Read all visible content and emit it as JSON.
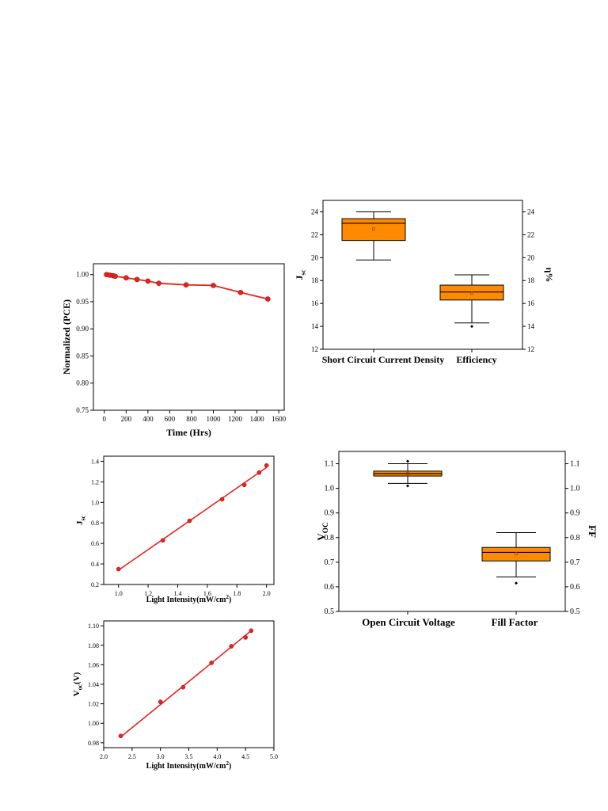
{
  "chart_data": [
    {
      "type": "line",
      "xlabel": "Time (Hrs)",
      "ylabel": "Normalized (PCE)",
      "xlim": [
        -100,
        1650
      ],
      "ylim": [
        0.75,
        1.02
      ],
      "xticks": [
        0,
        200,
        400,
        600,
        800,
        1000,
        1200,
        1400,
        1600
      ],
      "xtick_labels": [
        "0",
        "200",
        "400",
        "600",
        "800",
        "1000",
        "1200",
        "1400",
        "1600"
      ],
      "yticks": [
        0.75,
        0.8,
        0.85,
        0.9,
        0.95,
        1.0
      ],
      "ytick_labels": [
        "0.75",
        "0.80",
        "0.85",
        "0.90",
        "0.95",
        "1.00"
      ],
      "x": [
        20,
        50,
        80,
        100,
        200,
        300,
        400,
        500,
        750,
        1000,
        1250,
        1500
      ],
      "values": [
        1.0,
        0.999,
        0.998,
        0.997,
        0.994,
        0.991,
        0.988,
        0.984,
        0.981,
        0.98,
        0.967,
        0.955
      ],
      "color": "#e8231f"
    },
    {
      "type": "box",
      "left_ylabel": "J",
      "left_ylabel_sub": "sc",
      "right_ylabel": "η%",
      "ylim": [
        12,
        25
      ],
      "yticks": [
        12,
        14,
        16,
        18,
        20,
        22,
        24
      ],
      "ytick_labels": [
        "12",
        "14",
        "16",
        "18",
        "20",
        "22",
        "24"
      ],
      "categories": [
        "Short Circuit Current Density",
        "Efficiency"
      ],
      "boxes": [
        {
          "whisker_low": 19.8,
          "q1": 21.5,
          "median": 23.0,
          "mean": 22.5,
          "q3": 23.4,
          "whisker_high": 24.0,
          "outliers": []
        },
        {
          "whisker_low": 14.3,
          "q1": 16.3,
          "median": 17.0,
          "mean": 16.9,
          "q3": 17.6,
          "whisker_high": 18.5,
          "outliers": [
            14.0
          ]
        }
      ],
      "box_color": "#ff8a00"
    },
    {
      "type": "scatter",
      "xlabel": "Light Intensity(mW/cm",
      "xlabel_sup": "2",
      "xlabel_end": ")",
      "ylabel": "J",
      "ylabel_sub": "sc",
      "xlim": [
        0.9,
        2.05
      ],
      "ylim": [
        0.2,
        1.45
      ],
      "xticks": [
        1.0,
        1.2,
        1.4,
        1.6,
        1.8,
        2.0
      ],
      "xtick_labels": [
        "1.0",
        "1.2",
        "1.4",
        "1.6",
        "1.8",
        "2.0"
      ],
      "yticks": [
        0.2,
        0.4,
        0.6,
        0.8,
        1.0,
        1.2,
        1.4
      ],
      "ytick_labels": [
        "0.2",
        "0.4",
        "0.6",
        "0.8",
        "1.0",
        "1.2",
        "1.4"
      ],
      "x": [
        1.0,
        1.3,
        1.48,
        1.7,
        1.85,
        1.95,
        2.0
      ],
      "values": [
        0.35,
        0.63,
        0.82,
        1.03,
        1.17,
        1.29,
        1.36
      ],
      "fit": {
        "x": [
          1.0,
          2.0
        ],
        "y": [
          0.34,
          1.34
        ]
      },
      "color": "#e8231f"
    },
    {
      "type": "box",
      "left_ylabel": "V",
      "left_ylabel_sub": "OC",
      "right_ylabel": "FF",
      "ylim": [
        0.5,
        1.15
      ],
      "yticks": [
        0.5,
        0.6,
        0.7,
        0.8,
        0.9,
        1.0,
        1.1
      ],
      "ytick_labels": [
        "0.5",
        "0.6",
        "0.7",
        "0.8",
        "0.9",
        "1.0",
        "1.1"
      ],
      "categories": [
        "Open Circuit Voltage",
        "Fill Factor"
      ],
      "boxes": [
        {
          "whisker_low": 1.02,
          "q1": 1.05,
          "median": 1.06,
          "mean": 1.06,
          "q3": 1.07,
          "whisker_high": 1.1,
          "outliers": [
            1.01,
            1.11
          ]
        },
        {
          "whisker_low": 0.64,
          "q1": 0.705,
          "median": 0.74,
          "mean": 0.735,
          "q3": 0.76,
          "whisker_high": 0.82,
          "outliers": [
            0.615
          ]
        }
      ],
      "box_color": "#ff8a00"
    },
    {
      "type": "scatter",
      "xlabel": "Light Intensity(mW/cm",
      "xlabel_sup": "2",
      "xlabel_end": ")",
      "ylabel": "V",
      "ylabel_sub": "oc",
      "ylabel_end": "(V)",
      "xlim": [
        2.0,
        5.0
      ],
      "ylim": [
        0.975,
        1.105
      ],
      "xticks": [
        2.0,
        2.5,
        3.0,
        3.5,
        4.0,
        4.5,
        5.0
      ],
      "xtick_labels": [
        "2.0",
        "2.5",
        "3.0",
        "3.5",
        "4.0",
        "4.5",
        "5.0"
      ],
      "yticks": [
        0.98,
        1.0,
        1.02,
        1.04,
        1.06,
        1.08,
        1.1
      ],
      "ytick_labels": [
        "0.98",
        "1.00",
        "1.02",
        "1.04",
        "1.06",
        "1.08",
        "1.10"
      ],
      "x": [
        2.3,
        3.0,
        3.4,
        3.9,
        4.25,
        4.5,
        4.6
      ],
      "values": [
        0.987,
        1.022,
        1.037,
        1.062,
        1.079,
        1.088,
        1.095
      ],
      "fit": {
        "x": [
          2.3,
          4.6
        ],
        "y": [
          0.986,
          1.095
        ]
      },
      "color": "#e8231f"
    }
  ]
}
